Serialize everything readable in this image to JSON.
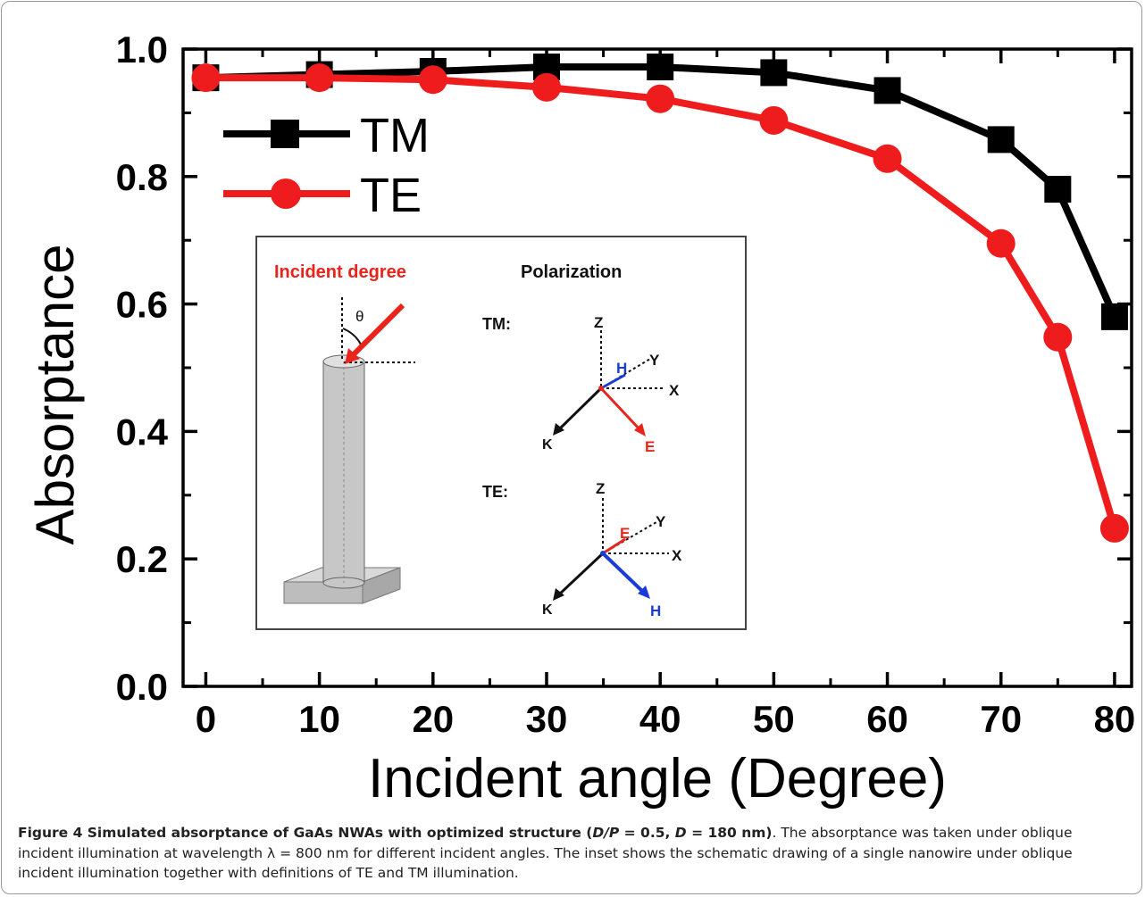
{
  "chart_data": {
    "type": "line",
    "xlabel": "Incident angle (Degree)",
    "ylabel": "Absorptance",
    "xlim": [
      -2,
      81.5
    ],
    "ylim": [
      0,
      1.0
    ],
    "x_ticks": [
      "0",
      "10",
      "20",
      "30",
      "40",
      "50",
      "60",
      "70",
      "80"
    ],
    "y_ticks": [
      "0.0",
      "0.2",
      "0.4",
      "0.6",
      "0.8",
      "1.0"
    ],
    "grid": false,
    "legend_position": "top-left",
    "x": [
      0,
      10,
      20,
      30,
      40,
      50,
      60,
      70,
      75,
      80
    ],
    "series": [
      {
        "name": "TM",
        "marker": "square",
        "color": "#000000",
        "values": [
          0.955,
          0.96,
          0.965,
          0.972,
          0.972,
          0.963,
          0.935,
          0.858,
          0.78,
          0.58
        ]
      },
      {
        "name": "TE",
        "marker": "circle",
        "color": "#ee1c1c",
        "values": [
          0.955,
          0.955,
          0.952,
          0.94,
          0.922,
          0.888,
          0.828,
          0.695,
          0.548,
          0.248
        ]
      }
    ]
  },
  "inset": {
    "incident_label": "Incident degree",
    "theta": "θ",
    "polarization_label": "Polarization",
    "tm_label": "TM:",
    "te_label": "TE:",
    "axes": {
      "z": "Z",
      "y": "Y",
      "x": "X",
      "k": "K",
      "e": "E",
      "h": "H"
    },
    "colors": {
      "incident": "#e8241c",
      "e_field": "#e8241c",
      "h_field": "#1a3cd6"
    }
  },
  "caption": {
    "bold": "Figure 4 Simulated absorptance of GaAs NWAs with optimized structure (",
    "bold_ratio": "D/P",
    "bold_mid": " = 0.5, ",
    "bold_d": "D",
    "bold_end": " = 180 nm)",
    "text": ". The absorptance was taken under oblique incident illumination at wavelength λ = 800 nm for different incident angles. The inset shows the schematic drawing of a single nanowire under oblique incident illumination together with definitions of TE and TM illumination."
  }
}
